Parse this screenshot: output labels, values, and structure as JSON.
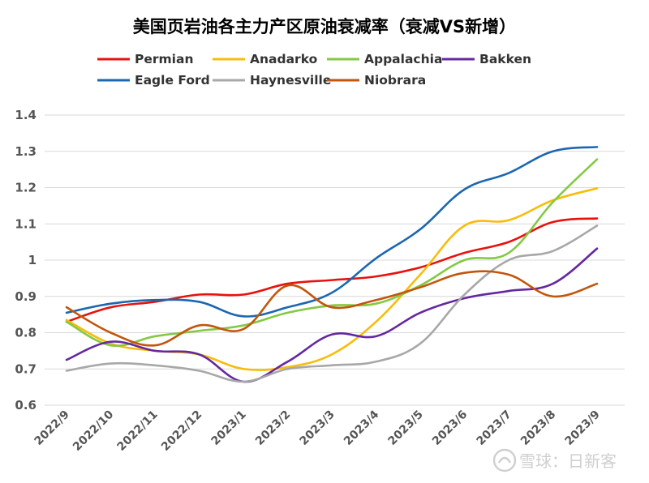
{
  "chart_data": {
    "type": "line",
    "title": "美国页岩油各主力产区原油衰减率（衰减VS新增）",
    "xlabel": "",
    "ylabel": "",
    "ylim": [
      0.6,
      1.4
    ],
    "yticks": [
      "0.6",
      "0.7",
      "0.8",
      "0.9",
      "1",
      "1.1",
      "1.2",
      "1.3",
      "1.4"
    ],
    "ytick_values": [
      0.6,
      0.7,
      0.8,
      0.9,
      1.0,
      1.1,
      1.2,
      1.3,
      1.4
    ],
    "grid": true,
    "legend_position": "top",
    "categories": [
      "2022/9",
      "2022/10",
      "2022/11",
      "2022/12",
      "2023/1",
      "2023/2",
      "2023/3",
      "2023/4",
      "2023/5",
      "2023/6",
      "2023/7",
      "2023/8",
      "2023/9"
    ],
    "series": [
      {
        "name": "Permian",
        "color": "#e8120c",
        "values": [
          0.83,
          0.87,
          0.885,
          0.905,
          0.905,
          0.935,
          0.945,
          0.955,
          0.98,
          1.02,
          1.05,
          1.105,
          1.115
        ]
      },
      {
        "name": "Anadarko",
        "color": "#f8bc0a",
        "values": [
          0.835,
          0.77,
          0.75,
          0.74,
          0.7,
          0.705,
          0.74,
          0.83,
          0.96,
          1.095,
          1.11,
          1.165,
          1.198
        ]
      },
      {
        "name": "Appalachia",
        "color": "#84c943",
        "values": [
          0.83,
          0.765,
          0.79,
          0.805,
          0.82,
          0.855,
          0.875,
          0.88,
          0.93,
          1.0,
          1.02,
          1.16,
          1.278
        ]
      },
      {
        "name": "Bakken",
        "color": "#6528a0",
        "values": [
          0.725,
          0.775,
          0.75,
          0.74,
          0.665,
          0.72,
          0.795,
          0.79,
          0.855,
          0.895,
          0.915,
          0.935,
          1.032
        ]
      },
      {
        "name": "Eagle Ford",
        "color": "#1c67b2",
        "values": [
          0.855,
          0.88,
          0.89,
          0.885,
          0.845,
          0.87,
          0.91,
          1.005,
          1.085,
          1.195,
          1.24,
          1.3,
          1.312
        ]
      },
      {
        "name": "Haynesville",
        "color": "#a8a8a8",
        "values": [
          0.695,
          0.715,
          0.71,
          0.695,
          0.665,
          0.7,
          0.71,
          0.72,
          0.77,
          0.905,
          1.0,
          1.025,
          1.095
        ]
      },
      {
        "name": "Niobrara",
        "color": "#c2560c",
        "values": [
          0.87,
          0.8,
          0.765,
          0.82,
          0.81,
          0.93,
          0.87,
          0.89,
          0.925,
          0.965,
          0.96,
          0.9,
          0.935
        ]
      }
    ],
    "watermark": "雪球：日新客"
  }
}
